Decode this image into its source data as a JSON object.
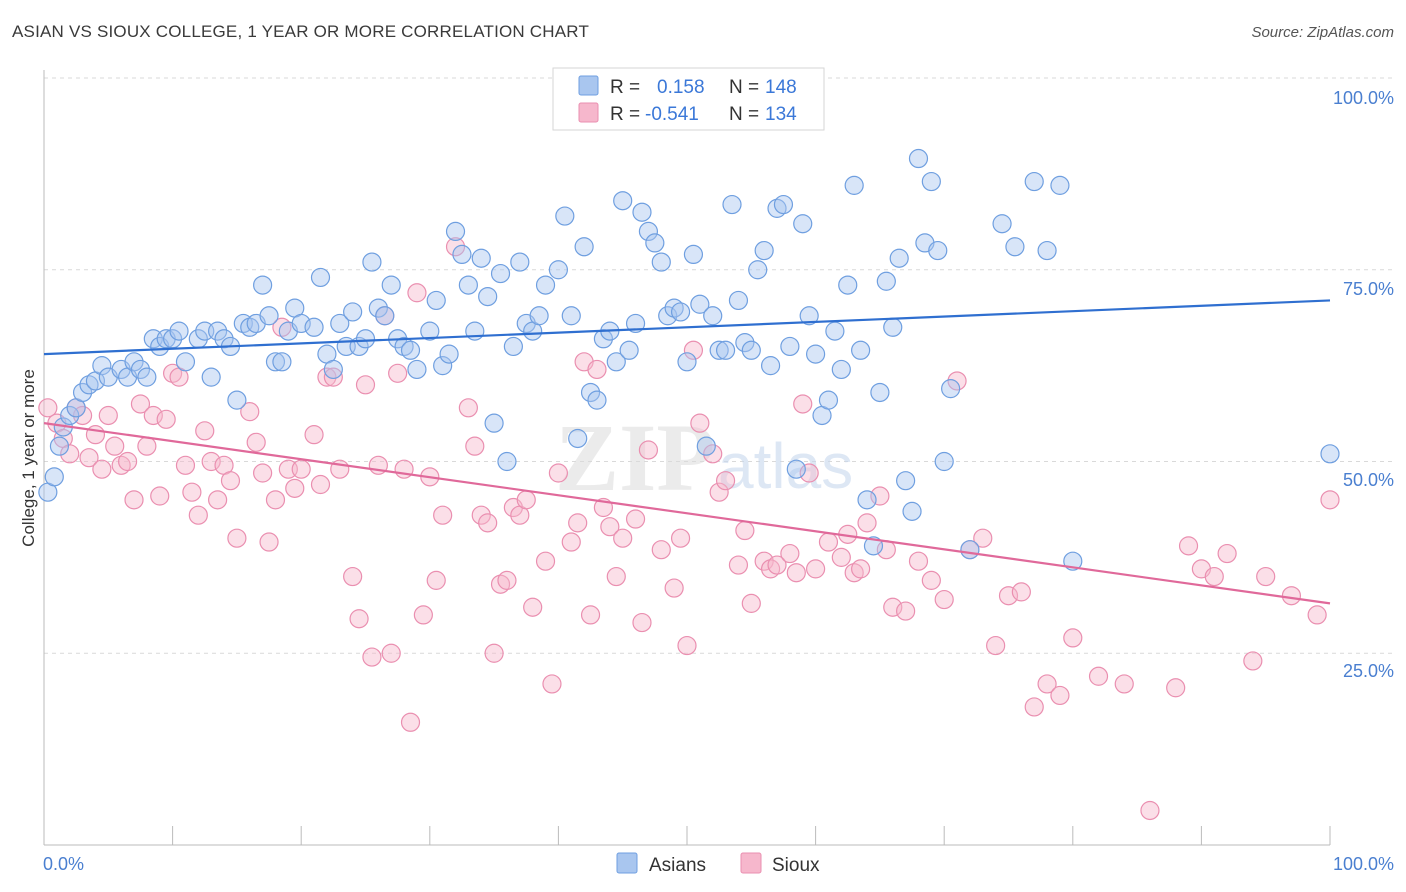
{
  "header": {
    "title": "ASIAN VS SIOUX COLLEGE, 1 YEAR OR MORE CORRELATION CHART",
    "source": "Source: ZipAtlas.com"
  },
  "legend_top": {
    "asians": {
      "r_label": "R =",
      "r_value": "0.158",
      "n_label": "N =",
      "n_value": "148"
    },
    "sioux": {
      "r_label": "R =",
      "r_value": "-0.541",
      "n_label": "N =",
      "n_value": "134"
    }
  },
  "legend_bottom": {
    "asians": "Asians",
    "sioux": "Sioux"
  },
  "watermark": {
    "zip": "ZIP",
    "atlas": "atlas"
  },
  "colors": {
    "asians_fill": "#a9c6ef",
    "asians_stroke": "#6f9fe0",
    "asians_line": "#2f6fd0",
    "sioux_fill": "#f6b7cc",
    "sioux_stroke": "#ea8fb0",
    "sioux_line": "#e0699a",
    "tick_label": "#4a7fd0",
    "grid": "#d9d9d9"
  },
  "chart_data": {
    "type": "scatter",
    "title": "ASIAN VS SIOUX COLLEGE, 1 YEAR OR MORE CORRELATION CHART",
    "xlabel": "",
    "ylabel": "College, 1 year or more",
    "xlim": [
      0,
      100
    ],
    "ylim": [
      0,
      100
    ],
    "x_tick_labels": [
      "0.0%",
      "100.0%"
    ],
    "y_tick_labels": [
      "25.0%",
      "50.0%",
      "75.0%",
      "100.0%"
    ],
    "y_ticks": [
      25,
      50,
      75,
      100
    ],
    "grid": "horizontal dashed",
    "legend_placement": "top-center and bottom-center",
    "series": [
      {
        "name": "Asians",
        "trend": {
          "x": [
            0,
            100
          ],
          "y": [
            64.0,
            71.0
          ]
        },
        "points": [
          [
            0.3,
            46
          ],
          [
            0.8,
            48
          ],
          [
            1.2,
            52
          ],
          [
            1.5,
            54.5
          ],
          [
            2,
            56
          ],
          [
            2.5,
            57
          ],
          [
            3,
            59
          ],
          [
            3.5,
            60
          ],
          [
            4,
            60.5
          ],
          [
            4.5,
            62.5
          ],
          [
            5,
            61
          ],
          [
            6,
            62
          ],
          [
            6.5,
            61
          ],
          [
            7,
            63
          ],
          [
            7.5,
            62
          ],
          [
            8,
            61
          ],
          [
            8.5,
            66
          ],
          [
            9,
            65
          ],
          [
            9.5,
            66
          ],
          [
            10,
            66
          ],
          [
            10.5,
            67
          ],
          [
            11,
            63
          ],
          [
            12,
            66
          ],
          [
            12.5,
            67
          ],
          [
            13,
            61
          ],
          [
            13.5,
            67
          ],
          [
            14,
            66
          ],
          [
            14.5,
            65
          ],
          [
            15,
            58
          ],
          [
            15.5,
            68
          ],
          [
            16,
            67.5
          ],
          [
            16.5,
            68
          ],
          [
            17,
            73
          ],
          [
            17.5,
            69
          ],
          [
            18,
            63
          ],
          [
            18.5,
            63
          ],
          [
            19,
            67
          ],
          [
            19.5,
            70
          ],
          [
            20,
            68
          ],
          [
            21,
            67.5
          ],
          [
            21.5,
            74
          ],
          [
            22,
            64
          ],
          [
            22.5,
            62
          ],
          [
            23,
            68
          ],
          [
            23.5,
            65
          ],
          [
            24,
            69.5
          ],
          [
            24.5,
            65
          ],
          [
            25,
            66
          ],
          [
            25.5,
            76
          ],
          [
            26,
            70
          ],
          [
            26.5,
            69
          ],
          [
            27,
            73
          ],
          [
            27.5,
            66
          ],
          [
            28,
            65
          ],
          [
            28.5,
            64.5
          ],
          [
            29,
            62
          ],
          [
            30,
            67
          ],
          [
            30.5,
            71
          ],
          [
            31,
            62.5
          ],
          [
            31.5,
            64
          ],
          [
            32,
            80
          ],
          [
            32.5,
            77
          ],
          [
            33,
            73
          ],
          [
            33.5,
            67
          ],
          [
            34,
            76.5
          ],
          [
            34.5,
            71.5
          ],
          [
            35,
            55
          ],
          [
            35.5,
            74.5
          ],
          [
            36,
            50
          ],
          [
            36.5,
            65
          ],
          [
            37,
            76
          ],
          [
            37.5,
            68
          ],
          [
            38,
            67
          ],
          [
            38.5,
            69
          ],
          [
            39,
            73
          ],
          [
            40,
            75
          ],
          [
            40.5,
            82
          ],
          [
            41,
            69
          ],
          [
            41.5,
            53
          ],
          [
            42,
            78
          ],
          [
            42.5,
            59
          ],
          [
            43,
            58
          ],
          [
            43.5,
            66
          ],
          [
            44,
            67
          ],
          [
            44.5,
            63
          ],
          [
            45,
            84
          ],
          [
            45.5,
            64.5
          ],
          [
            46,
            68
          ],
          [
            46.5,
            82.5
          ],
          [
            47,
            80
          ],
          [
            47.5,
            78.5
          ],
          [
            48,
            76
          ],
          [
            48.5,
            69
          ],
          [
            49,
            70
          ],
          [
            49.5,
            69.5
          ],
          [
            50,
            63
          ],
          [
            50.5,
            77
          ],
          [
            51,
            70.5
          ],
          [
            51.5,
            52
          ],
          [
            52,
            69
          ],
          [
            52.5,
            64.5
          ],
          [
            53,
            64.5
          ],
          [
            53.5,
            83.5
          ],
          [
            54,
            71
          ],
          [
            54.5,
            65.5
          ],
          [
            55,
            64.5
          ],
          [
            55.5,
            75
          ],
          [
            56,
            77.5
          ],
          [
            56.5,
            62.5
          ],
          [
            57,
            83
          ],
          [
            57.5,
            83.5
          ],
          [
            58,
            65
          ],
          [
            58.5,
            49
          ],
          [
            59,
            81
          ],
          [
            59.5,
            69
          ],
          [
            60,
            64
          ],
          [
            60.5,
            56
          ],
          [
            61,
            58
          ],
          [
            61.5,
            67
          ],
          [
            62,
            62
          ],
          [
            62.5,
            73
          ],
          [
            63,
            86
          ],
          [
            63.5,
            64.5
          ],
          [
            64,
            45
          ],
          [
            64.5,
            39
          ],
          [
            65,
            59
          ],
          [
            65.5,
            73.5
          ],
          [
            66,
            67.5
          ],
          [
            66.5,
            76.5
          ],
          [
            67,
            47.5
          ],
          [
            67.5,
            43.5
          ],
          [
            68,
            89.5
          ],
          [
            68.5,
            78.5
          ],
          [
            69,
            86.5
          ],
          [
            69.5,
            77.5
          ],
          [
            70,
            50
          ],
          [
            70.5,
            59.5
          ],
          [
            72,
            38.5
          ],
          [
            74.5,
            81
          ],
          [
            75.5,
            78
          ],
          [
            77,
            86.5
          ],
          [
            78,
            77.5
          ],
          [
            79,
            86
          ],
          [
            80,
            37
          ],
          [
            100,
            51
          ]
        ]
      },
      {
        "name": "Sioux",
        "trend": {
          "x": [
            0,
            100
          ],
          "y": [
            55.0,
            31.5
          ]
        },
        "points": [
          [
            0.3,
            57
          ],
          [
            1,
            55
          ],
          [
            1.5,
            53
          ],
          [
            2,
            51
          ],
          [
            2.5,
            57
          ],
          [
            3,
            56
          ],
          [
            3.5,
            50.5
          ],
          [
            4,
            53.5
          ],
          [
            4.5,
            49
          ],
          [
            5,
            56
          ],
          [
            5.5,
            52
          ],
          [
            6,
            49.5
          ],
          [
            6.5,
            50
          ],
          [
            7,
            45
          ],
          [
            7.5,
            57.5
          ],
          [
            8,
            52
          ],
          [
            8.5,
            56
          ],
          [
            9,
            45.5
          ],
          [
            9.5,
            55.5
          ],
          [
            10,
            61.5
          ],
          [
            10.5,
            61
          ],
          [
            11,
            49.5
          ],
          [
            11.5,
            46
          ],
          [
            12,
            43
          ],
          [
            12.5,
            54
          ],
          [
            13,
            50
          ],
          [
            13.5,
            45
          ],
          [
            14,
            49.5
          ],
          [
            14.5,
            47.5
          ],
          [
            15,
            40
          ],
          [
            16,
            56.5
          ],
          [
            16.5,
            52.5
          ],
          [
            17,
            48.5
          ],
          [
            17.5,
            39.5
          ],
          [
            18,
            45
          ],
          [
            18.5,
            67.5
          ],
          [
            19,
            49
          ],
          [
            19.5,
            46.5
          ],
          [
            20,
            49
          ],
          [
            21,
            53.5
          ],
          [
            21.5,
            47
          ],
          [
            22,
            61
          ],
          [
            22.5,
            61
          ],
          [
            23,
            49
          ],
          [
            24,
            35
          ],
          [
            24.5,
            29.5
          ],
          [
            25,
            60
          ],
          [
            25.5,
            24.5
          ],
          [
            26,
            49.5
          ],
          [
            26.5,
            69
          ],
          [
            27,
            25
          ],
          [
            27.5,
            61.5
          ],
          [
            28,
            49
          ],
          [
            28.5,
            16
          ],
          [
            29,
            72
          ],
          [
            29.5,
            30
          ],
          [
            30,
            48
          ],
          [
            30.5,
            34.5
          ],
          [
            31,
            43
          ],
          [
            32,
            78
          ],
          [
            33,
            57
          ],
          [
            33.5,
            52
          ],
          [
            34,
            43
          ],
          [
            34.5,
            42
          ],
          [
            35,
            25
          ],
          [
            35.5,
            34
          ],
          [
            36,
            34.5
          ],
          [
            36.5,
            44
          ],
          [
            37,
            43
          ],
          [
            37.5,
            45
          ],
          [
            38,
            31
          ],
          [
            39,
            37
          ],
          [
            39.5,
            21
          ],
          [
            40,
            48.5
          ],
          [
            41,
            39.5
          ],
          [
            41.5,
            42
          ],
          [
            42,
            63
          ],
          [
            42.5,
            30
          ],
          [
            43,
            62
          ],
          [
            43.5,
            44
          ],
          [
            44,
            41.5
          ],
          [
            44.5,
            35
          ],
          [
            45,
            40
          ],
          [
            46,
            42.5
          ],
          [
            46.5,
            29
          ],
          [
            47,
            51.5
          ],
          [
            48,
            38.5
          ],
          [
            49,
            33.5
          ],
          [
            49.5,
            40
          ],
          [
            50,
            26
          ],
          [
            50.5,
            64.5
          ],
          [
            51,
            55
          ],
          [
            52,
            51
          ],
          [
            52.5,
            46
          ],
          [
            53,
            47.5
          ],
          [
            54,
            36.5
          ],
          [
            54.5,
            41
          ],
          [
            55,
            31.5
          ],
          [
            56,
            37
          ],
          [
            56.5,
            36
          ],
          [
            57,
            36.5
          ],
          [
            58,
            38
          ],
          [
            58.5,
            35.5
          ],
          [
            59,
            57.5
          ],
          [
            59.5,
            48.5
          ],
          [
            60,
            36
          ],
          [
            61,
            39.5
          ],
          [
            62,
            37.5
          ],
          [
            62.5,
            40.5
          ],
          [
            63,
            35.5
          ],
          [
            63.5,
            36
          ],
          [
            64,
            42
          ],
          [
            65,
            45.5
          ],
          [
            65.5,
            38.5
          ],
          [
            66,
            31
          ],
          [
            67,
            30.5
          ],
          [
            68,
            37
          ],
          [
            69,
            34.5
          ],
          [
            70,
            32
          ],
          [
            71,
            60.5
          ],
          [
            72,
            38.5
          ],
          [
            73,
            40
          ],
          [
            74,
            26
          ],
          [
            75,
            32.5
          ],
          [
            76,
            33
          ],
          [
            77,
            18
          ],
          [
            78,
            21
          ],
          [
            79,
            19.5
          ],
          [
            80,
            27
          ],
          [
            82,
            22
          ],
          [
            84,
            21
          ],
          [
            86,
            4.5
          ],
          [
            88,
            20.5
          ],
          [
            89,
            39
          ],
          [
            90,
            36
          ],
          [
            91,
            35
          ],
          [
            92,
            38
          ],
          [
            94,
            24
          ],
          [
            95,
            35
          ],
          [
            97,
            32.5
          ],
          [
            99,
            30
          ],
          [
            100,
            45
          ]
        ]
      }
    ]
  }
}
